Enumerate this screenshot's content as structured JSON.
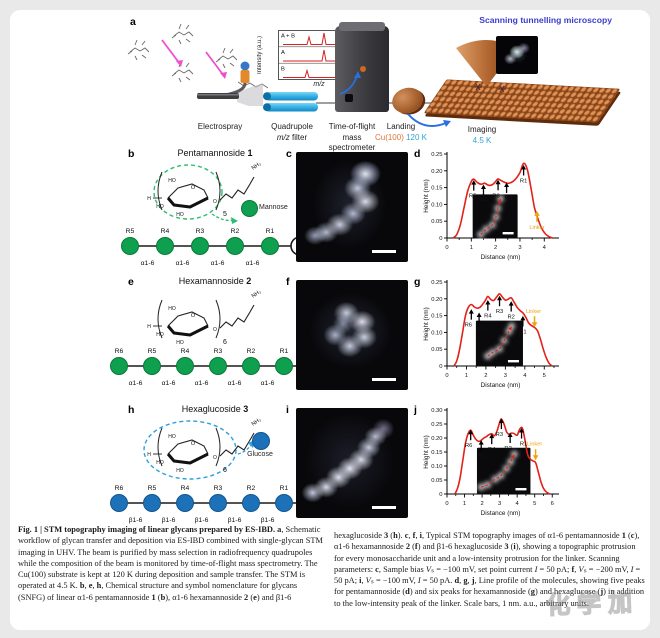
{
  "figure": {
    "panel_a": {
      "letter": "a",
      "stm_heading": "Scanning tunnelling microscopy",
      "inset": {
        "ylabel": "Intensity (a.u.)",
        "xlabel": "m/z",
        "traces": [
          "A + B",
          "A",
          "B"
        ]
      },
      "steps": {
        "electrospray": "Electrospray",
        "quadrupole_1": "Quadrupole",
        "quadrupole_2a": "m/z",
        "quadrupole_2b": " filter",
        "tof_1": "Time-of-flight",
        "tof_2": "mass",
        "tof_3": "spectrometer",
        "landing": "Landing",
        "substrate": "Cu(100)",
        "landing_temp": "120 K",
        "imaging": "Imaging",
        "imaging_temp": "4.5 K"
      }
    },
    "struct_labels": {
      "h": "H",
      "ho": "HO",
      "o": "O"
    },
    "rows": [
      {
        "letter": "b",
        "title": "Pentamannoside",
        "number": "1",
        "amine": "NH₂",
        "subscript": "5",
        "legend": "Mannose",
        "color": "#0fa04f",
        "stroke": "#067a36",
        "dash": "#2bbf6e",
        "residues": [
          "R5",
          "R4",
          "R3",
          "R2",
          "R1"
        ],
        "linkages": [
          "α1-6",
          "α1-6",
          "α1-6",
          "α1-6"
        ],
        "linker": "Linker",
        "stm_letter": "c",
        "chart_letter": "d"
      },
      {
        "letter": "e",
        "title": "Hexamannoside",
        "number": "2",
        "amine": "NH₂",
        "subscript": "6",
        "legend": null,
        "color": "#0fa04f",
        "stroke": "#067a36",
        "dash": null,
        "residues": [
          "R6",
          "R5",
          "R4",
          "R3",
          "R2",
          "R1"
        ],
        "linkages": [
          "α1-6",
          "α1-6",
          "α1-6",
          "α1-6",
          "α1-6"
        ],
        "linker": "Linker",
        "stm_letter": "f",
        "chart_letter": "g"
      },
      {
        "letter": "h",
        "title": "Hexaglucoside",
        "number": "3",
        "amine": "NH₂",
        "subscript": "6",
        "legend": "Glucose",
        "color": "#1d71b8",
        "stroke": "#14568c",
        "dash": "#2e9fe0",
        "residues": [
          "R6",
          "R5",
          "R4",
          "R3",
          "R2",
          "R1"
        ],
        "linkages": [
          "β1-6",
          "β1-6",
          "β1-6",
          "β1-6",
          "β1-6"
        ],
        "linker": "Linker",
        "stm_letter": "i",
        "chart_letter": "j"
      }
    ],
    "colors": {
      "mannose_green": "#0fa04f",
      "glucose_blue": "#1d71b8",
      "profile_red": "#e32119",
      "linker_orange": "#eda410",
      "heading_blue": "#3c3ccc",
      "temp_cyan": "#2fa3d9",
      "cu_orange": "#e0763a",
      "magenta": "#ee4fd0",
      "quad_cyan": "#33b1e6"
    }
  },
  "chart_data": [
    {
      "id": "d",
      "type": "line",
      "title": "",
      "ylabel": "Height (nm)",
      "xlabel": "Distance (nm)",
      "ylim": [
        0,
        0.25
      ],
      "y_ticks": [
        0,
        0.05,
        0.1,
        0.15,
        0.2,
        0.25
      ],
      "y_tick_labels": [
        "0",
        "0.05",
        "0.10",
        "0.15",
        "0.20",
        "0.25"
      ],
      "xlim": [
        0,
        4.4
      ],
      "x_ticks": [
        0,
        1,
        2,
        3,
        4
      ],
      "points": [
        [
          0.25,
          0
        ],
        [
          0.4,
          0.01
        ],
        [
          0.55,
          0.04
        ],
        [
          0.7,
          0.09
        ],
        [
          0.85,
          0.14
        ],
        [
          1.0,
          0.168
        ],
        [
          1.1,
          0.175
        ],
        [
          1.25,
          0.165
        ],
        [
          1.4,
          0.16
        ],
        [
          1.55,
          0.163
        ],
        [
          1.7,
          0.157
        ],
        [
          1.85,
          0.158
        ],
        [
          2.0,
          0.168
        ],
        [
          2.1,
          0.176
        ],
        [
          2.25,
          0.17
        ],
        [
          2.4,
          0.165
        ],
        [
          2.55,
          0.163
        ],
        [
          2.7,
          0.168
        ],
        [
          2.85,
          0.178
        ],
        [
          3.0,
          0.195
        ],
        [
          3.15,
          0.222
        ],
        [
          3.3,
          0.205
        ],
        [
          3.45,
          0.15
        ],
        [
          3.6,
          0.09
        ],
        [
          3.75,
          0.055
        ],
        [
          3.9,
          0.028
        ],
        [
          4.05,
          0.012
        ],
        [
          4.2,
          0.004
        ],
        [
          4.35,
          0
        ]
      ],
      "peaks": [
        {
          "label": "R5",
          "x": 1.1,
          "y": 0.141,
          "lx": -1
        },
        {
          "label": "R4",
          "x": 1.5,
          "y": 0.128
        },
        {
          "label": "R3",
          "x": 2.1,
          "y": 0.142,
          "lx": -2
        },
        {
          "label": "R2",
          "x": 2.45,
          "y": 0.134,
          "lx": 2
        },
        {
          "label": "R1",
          "x": 3.15,
          "y": 0.186
        }
      ],
      "linker": {
        "label": "Linker",
        "x": 3.7,
        "y": 0.048,
        "dir": "up"
      },
      "inset": {
        "x": 0.24,
        "y": 0.48,
        "w": 0.42,
        "h": 0.52
      },
      "inset_curve": [
        [
          0.18,
          0.92
        ],
        [
          0.3,
          0.8
        ],
        [
          0.44,
          0.7
        ],
        [
          0.52,
          0.52
        ],
        [
          0.56,
          0.32
        ],
        [
          0.62,
          0.1
        ]
      ]
    },
    {
      "id": "g",
      "type": "line",
      "title": "",
      "ylabel": "Height (nm)",
      "xlabel": "Distance (nm)",
      "ylim": [
        0,
        0.25
      ],
      "y_ticks": [
        0,
        0.05,
        0.1,
        0.15,
        0.2,
        0.25
      ],
      "y_tick_labels": [
        "0",
        "0.05",
        "0.10",
        "0.15",
        "0.20",
        "0.25"
      ],
      "xlim": [
        0,
        5.5
      ],
      "x_ticks": [
        0,
        1,
        2,
        3,
        4,
        5
      ],
      "points": [
        [
          0.35,
          0
        ],
        [
          0.5,
          0.015
        ],
        [
          0.65,
          0.05
        ],
        [
          0.8,
          0.1
        ],
        [
          0.95,
          0.15
        ],
        [
          1.1,
          0.175
        ],
        [
          1.25,
          0.183
        ],
        [
          1.4,
          0.176
        ],
        [
          1.55,
          0.172
        ],
        [
          1.7,
          0.175
        ],
        [
          1.85,
          0.185
        ],
        [
          2.0,
          0.198
        ],
        [
          2.1,
          0.207
        ],
        [
          2.25,
          0.198
        ],
        [
          2.4,
          0.195
        ],
        [
          2.55,
          0.205
        ],
        [
          2.7,
          0.215
        ],
        [
          2.85,
          0.205
        ],
        [
          3.0,
          0.196
        ],
        [
          3.15,
          0.199
        ],
        [
          3.3,
          0.203
        ],
        [
          3.45,
          0.19
        ],
        [
          3.6,
          0.175
        ],
        [
          3.75,
          0.165
        ],
        [
          3.9,
          0.158
        ],
        [
          4.05,
          0.145
        ],
        [
          4.2,
          0.128
        ],
        [
          4.35,
          0.12
        ],
        [
          4.5,
          0.115
        ],
        [
          4.65,
          0.105
        ],
        [
          4.8,
          0.08
        ],
        [
          4.95,
          0.05
        ],
        [
          5.1,
          0.025
        ],
        [
          5.25,
          0.008
        ],
        [
          5.4,
          0
        ]
      ],
      "peaks": [
        {
          "label": "R6",
          "x": 1.25,
          "y": 0.138,
          "lx": -3
        },
        {
          "label": "R5",
          "x": 1.65,
          "y": 0.128,
          "lx": 2
        },
        {
          "label": "R4",
          "x": 2.1,
          "y": 0.165
        },
        {
          "label": "R3",
          "x": 2.7,
          "y": 0.178
        },
        {
          "label": "R2",
          "x": 3.3,
          "y": 0.162
        },
        {
          "label": "R1",
          "x": 3.9,
          "y": 0.118
        }
      ],
      "linker": {
        "label": "Linker",
        "x": 4.5,
        "y": 0.148,
        "dir": "down"
      },
      "inset": {
        "x": 0.27,
        "y": 0.46,
        "w": 0.44,
        "h": 0.54
      },
      "inset_curve": [
        [
          0.25,
          0.78
        ],
        [
          0.36,
          0.7
        ],
        [
          0.5,
          0.62
        ],
        [
          0.6,
          0.44
        ],
        [
          0.7,
          0.24
        ],
        [
          0.76,
          0.12
        ]
      ]
    },
    {
      "id": "j",
      "type": "line",
      "title": "",
      "ylabel": "Height (nm)",
      "xlabel": "Distance (nm)",
      "ylim": [
        0,
        0.3
      ],
      "y_ticks": [
        0,
        0.05,
        0.1,
        0.15,
        0.2,
        0.25,
        0.3
      ],
      "y_tick_labels": [
        "0",
        "0.05",
        "0.10",
        "0.15",
        "0.20",
        "0.25",
        "0.30"
      ],
      "xlim": [
        0,
        6.1
      ],
      "x_ticks": [
        0,
        1,
        2,
        3,
        4,
        5,
        6
      ],
      "points": [
        [
          0.45,
          0
        ],
        [
          0.6,
          0.02
        ],
        [
          0.75,
          0.06
        ],
        [
          0.9,
          0.12
        ],
        [
          1.05,
          0.18
        ],
        [
          1.2,
          0.215
        ],
        [
          1.35,
          0.228
        ],
        [
          1.5,
          0.21
        ],
        [
          1.65,
          0.195
        ],
        [
          1.8,
          0.188
        ],
        [
          1.95,
          0.192
        ],
        [
          2.1,
          0.2
        ],
        [
          2.25,
          0.205
        ],
        [
          2.4,
          0.212
        ],
        [
          2.55,
          0.215
        ],
        [
          2.7,
          0.208
        ],
        [
          2.85,
          0.225
        ],
        [
          3.0,
          0.255
        ],
        [
          3.1,
          0.268
        ],
        [
          3.25,
          0.25
        ],
        [
          3.4,
          0.222
        ],
        [
          3.55,
          0.213
        ],
        [
          3.7,
          0.218
        ],
        [
          3.85,
          0.215
        ],
        [
          4.0,
          0.21
        ],
        [
          4.15,
          0.232
        ],
        [
          4.3,
          0.235
        ],
        [
          4.45,
          0.19
        ],
        [
          4.6,
          0.14
        ],
        [
          4.75,
          0.125
        ],
        [
          4.9,
          0.118
        ],
        [
          5.05,
          0.112
        ],
        [
          5.2,
          0.08
        ],
        [
          5.35,
          0.045
        ],
        [
          5.5,
          0.02
        ],
        [
          5.65,
          0.008
        ],
        [
          5.85,
          0
        ]
      ],
      "peaks": [
        {
          "label": "R6",
          "x": 1.35,
          "y": 0.192,
          "lx": -2
        },
        {
          "label": "R5",
          "x": 1.95,
          "y": 0.155
        },
        {
          "label": "R4",
          "x": 2.55,
          "y": 0.178
        },
        {
          "label": "R3",
          "x": 3.1,
          "y": 0.232,
          "lx": -2
        },
        {
          "label": "R2",
          "x": 3.6,
          "y": 0.182,
          "lx": -2
        },
        {
          "label": "R1",
          "x": 4.25,
          "y": 0.198,
          "lx": 2
        }
      ],
      "linker": {
        "label": "Linker",
        "x": 5.05,
        "y": 0.16,
        "dir": "down"
      },
      "inset": {
        "x": 0.28,
        "y": 0.45,
        "w": 0.5,
        "h": 0.55
      },
      "inset_curve": [
        [
          0.08,
          0.85
        ],
        [
          0.2,
          0.8
        ],
        [
          0.34,
          0.68
        ],
        [
          0.45,
          0.6
        ],
        [
          0.55,
          0.45
        ],
        [
          0.63,
          0.3
        ],
        [
          0.7,
          0.14
        ]
      ]
    }
  ],
  "caption": {
    "col1": [
      {
        "b": true,
        "t": "Fig. 1 | STM topography imaging of linear glycans prepared by ES-IBD. "
      },
      {
        "b": true,
        "t": "a"
      },
      {
        "t": ", Schematic workflow of glycan transfer and deposition via ES-IBD combined with single-glycan STM imaging in UHV. The beam is purified by mass selection in radiofrequency quadrupoles while the composition of the beam is monitored by time-of-flight mass spectrometry. The Cu(100) substrate is kept at 120 K during deposition and sample transfer. The STM is operated at 4.5 K. "
      },
      {
        "b": true,
        "t": "b"
      },
      {
        "t": ", "
      },
      {
        "b": true,
        "t": "e"
      },
      {
        "t": ", "
      },
      {
        "b": true,
        "t": "h"
      },
      {
        "t": ", Chemical structure and symbol nomenclature for glycans (SNFG) of linear α1-6 pentamannoside "
      },
      {
        "b": true,
        "t": "1"
      },
      {
        "t": " ("
      },
      {
        "b": true,
        "t": "b"
      },
      {
        "t": "), α1-6 hexamannoside "
      },
      {
        "b": true,
        "t": "2"
      },
      {
        "t": " ("
      },
      {
        "b": true,
        "t": "e"
      },
      {
        "t": ") and β1-6"
      }
    ],
    "col2": [
      {
        "t": "hexaglucoside "
      },
      {
        "b": true,
        "t": "3"
      },
      {
        "t": " ("
      },
      {
        "b": true,
        "t": "h"
      },
      {
        "t": "). "
      },
      {
        "b": true,
        "t": "c"
      },
      {
        "t": ", "
      },
      {
        "b": true,
        "t": "f"
      },
      {
        "t": ", "
      },
      {
        "b": true,
        "t": "i"
      },
      {
        "t": ", Typical STM topography images of α1-6 pentamannoside "
      },
      {
        "b": true,
        "t": "1"
      },
      {
        "t": " ("
      },
      {
        "b": true,
        "t": "c"
      },
      {
        "t": "), α1-6 hexamannoside "
      },
      {
        "b": true,
        "t": "2"
      },
      {
        "t": " ("
      },
      {
        "b": true,
        "t": "f"
      },
      {
        "t": ") and β1-6 hexaglucoside "
      },
      {
        "b": true,
        "t": "3"
      },
      {
        "t": " ("
      },
      {
        "b": true,
        "t": "i"
      },
      {
        "t": "), showing a topographic protrusion for every monosaccharide unit and a low-intensity protrusion for the linker. Scanning parameters: "
      },
      {
        "b": true,
        "t": "c"
      },
      {
        "t": ", Sample bias "
      },
      {
        "i": true,
        "t": "V"
      },
      {
        "t": "ₛ = −100 mV, set point current "
      },
      {
        "i": true,
        "t": "I"
      },
      {
        "t": " = 50 pA; "
      },
      {
        "b": true,
        "t": "f"
      },
      {
        "t": ", "
      },
      {
        "i": true,
        "t": "V"
      },
      {
        "t": "ₛ = −200 mV, "
      },
      {
        "i": true,
        "t": "I"
      },
      {
        "t": " = 50 pA; "
      },
      {
        "b": true,
        "t": "i"
      },
      {
        "t": ", "
      },
      {
        "i": true,
        "t": "V"
      },
      {
        "t": "ₛ = −100 mV, "
      },
      {
        "i": true,
        "t": "I"
      },
      {
        "t": " = 50 pA. "
      },
      {
        "b": true,
        "t": "d"
      },
      {
        "t": ", "
      },
      {
        "b": true,
        "t": "g"
      },
      {
        "t": ", "
      },
      {
        "b": true,
        "t": "j"
      },
      {
        "t": ", Line profile of the molecules, showing five peaks for pentamannoside ("
      },
      {
        "b": true,
        "t": "d"
      },
      {
        "t": ") and six peaks for hexamannoside ("
      },
      {
        "b": true,
        "t": "g"
      },
      {
        "t": ") and hexaglucose ("
      },
      {
        "b": true,
        "t": "j"
      },
      {
        "t": ") in addition to the low-intensity peak of the linker. Scale bars, 1 nm. a.u., arbitrary units."
      }
    ]
  },
  "watermark": "化学加"
}
